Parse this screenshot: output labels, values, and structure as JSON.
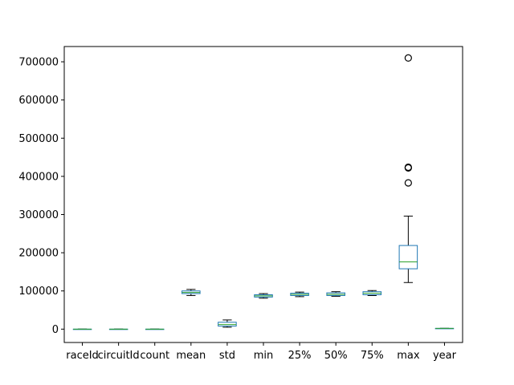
{
  "chart_data": {
    "type": "box",
    "title": "",
    "xlabel": "",
    "ylabel": "",
    "ylim": [
      -35000,
      740000
    ],
    "yticks": [
      0,
      100000,
      200000,
      300000,
      400000,
      500000,
      600000,
      700000
    ],
    "ytick_labels": [
      "0",
      "100000",
      "200000",
      "300000",
      "400000",
      "500000",
      "600000",
      "700000"
    ],
    "grid": false,
    "categories": [
      "raceId",
      "circuitId",
      "count",
      "mean",
      "std",
      "min",
      "25%",
      "50%",
      "75%",
      "max",
      "year"
    ],
    "boxes": [
      {
        "whislo": 0,
        "q1": 0,
        "med": 0,
        "q3": 0,
        "whishi": 0,
        "fliers": []
      },
      {
        "whislo": 0,
        "q1": 0,
        "med": 0,
        "q3": 0,
        "whishi": 0,
        "fliers": []
      },
      {
        "whislo": 0,
        "q1": 0,
        "med": 0,
        "q3": 0,
        "whishi": 0,
        "fliers": []
      },
      {
        "whislo": 88000,
        "q1": 93000,
        "med": 96000,
        "q3": 100000,
        "whishi": 104000,
        "fliers": []
      },
      {
        "whislo": 5000,
        "q1": 8000,
        "med": 12000,
        "q3": 18000,
        "whishi": 24000,
        "fliers": []
      },
      {
        "whislo": 81000,
        "q1": 84000,
        "med": 87000,
        "q3": 90000,
        "whishi": 93000,
        "fliers": []
      },
      {
        "whislo": 85000,
        "q1": 88000,
        "med": 91000,
        "q3": 94000,
        "whishi": 97000,
        "fliers": []
      },
      {
        "whislo": 86000,
        "q1": 88000,
        "med": 91000,
        "q3": 95000,
        "whishi": 98000,
        "fliers": []
      },
      {
        "whislo": 88000,
        "q1": 90000,
        "med": 94000,
        "q3": 98000,
        "whishi": 101000,
        "fliers": []
      },
      {
        "whislo": 122000,
        "q1": 158000,
        "med": 176000,
        "q3": 219000,
        "whishi": 296000,
        "fliers": [
          383000,
          422000,
          424000,
          710000
        ]
      },
      {
        "whislo": 2000,
        "q1": 2000,
        "med": 2000,
        "q3": 2000,
        "whishi": 2000,
        "fliers": []
      }
    ],
    "colors": {
      "box": "#1f77b4",
      "median": "#2ca02c",
      "whisker_cap": "#000000",
      "flier": "#000000",
      "axes": "#000000"
    }
  }
}
